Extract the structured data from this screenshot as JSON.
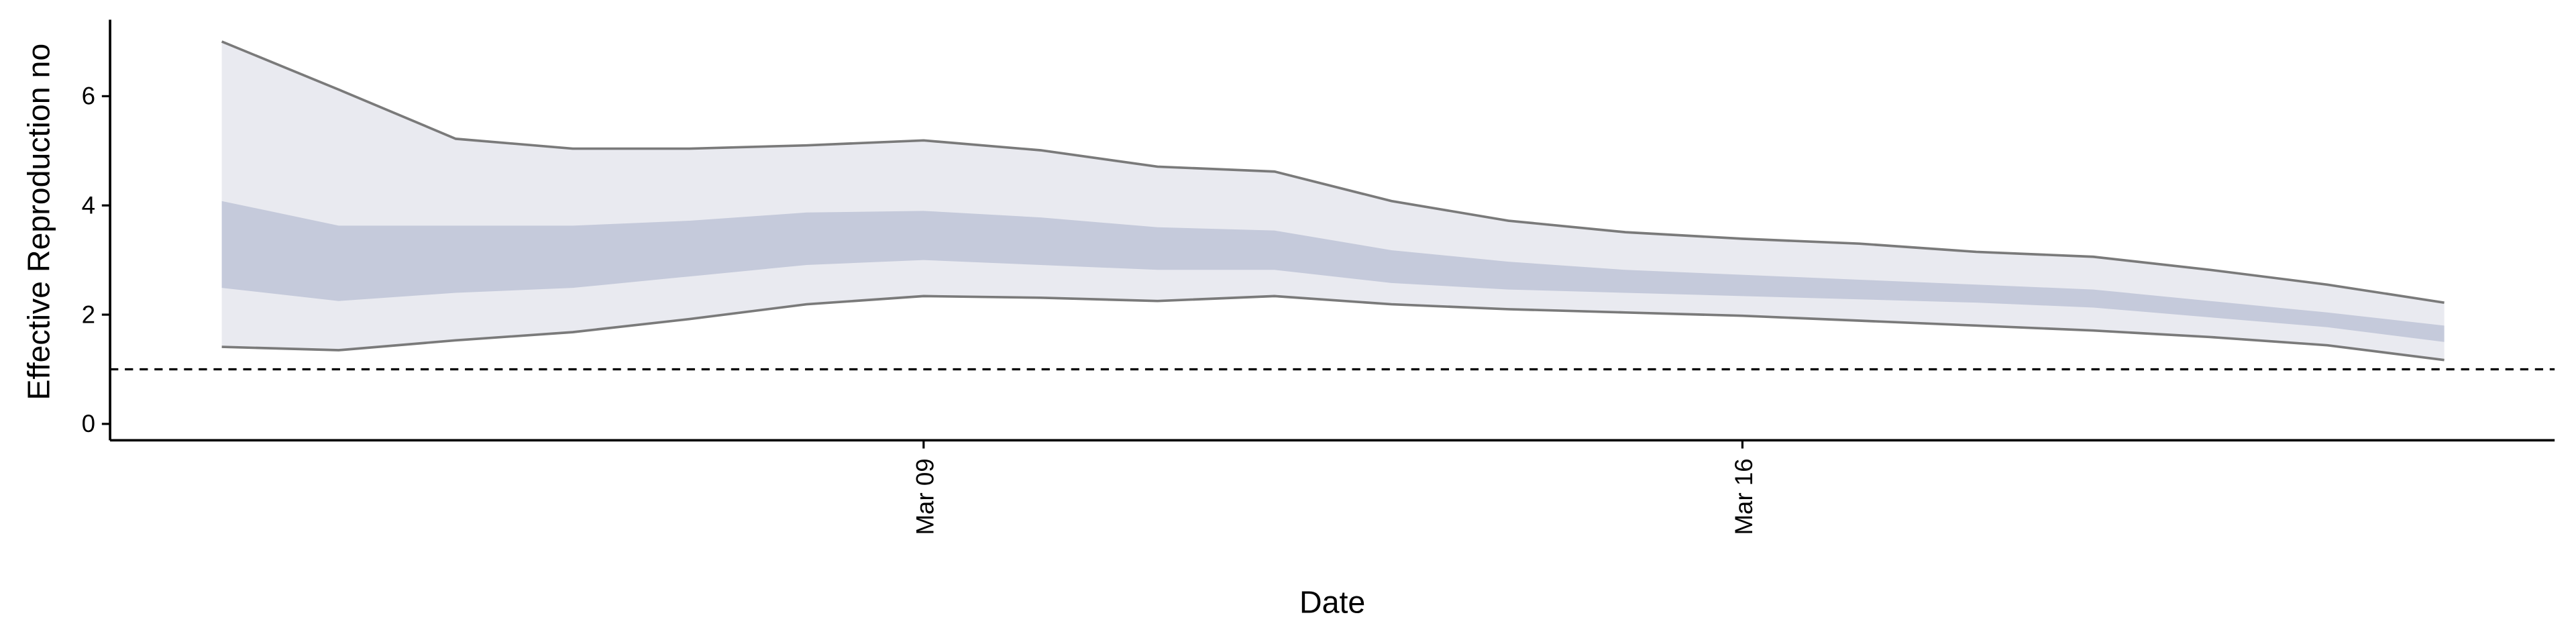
{
  "chart_data": {
    "type": "ribbon",
    "x_label": "Date",
    "y_label": "Effective Reproduction no",
    "x": [
      "Mar 03",
      "Mar 04",
      "Mar 05",
      "Mar 06",
      "Mar 07",
      "Mar 08",
      "Mar 09",
      "Mar 10",
      "Mar 11",
      "Mar 12",
      "Mar 13",
      "Mar 14",
      "Mar 15",
      "Mar 16",
      "Mar 17",
      "Mar 18",
      "Mar 19",
      "Mar 20",
      "Mar 21",
      "Mar 22"
    ],
    "xticks": [
      "Mar 09",
      "Mar 16"
    ],
    "ylim": [
      -0.3,
      7.4
    ],
    "yticks": [
      0,
      2,
      4,
      6
    ],
    "reference_line": 1,
    "outline_color": "#7a7a7a",
    "bands": [
      {
        "color": "#e9eaf0",
        "upper": [
          7.0,
          6.12,
          5.22,
          5.04,
          5.04,
          5.1,
          5.19,
          5.01,
          4.71,
          4.62,
          4.08,
          3.72,
          3.51,
          3.39,
          3.3,
          3.15,
          3.06,
          2.82,
          2.55,
          2.22
        ],
        "lower": [
          1.41,
          1.35,
          1.53,
          1.68,
          1.92,
          2.19,
          2.34,
          2.31,
          2.25,
          2.34,
          2.19,
          2.1,
          2.04,
          1.98,
          1.89,
          1.8,
          1.71,
          1.59,
          1.44,
          1.17
        ]
      },
      {
        "color": "#c5cadb",
        "upper": [
          4.08,
          3.63,
          3.63,
          3.63,
          3.72,
          3.87,
          3.9,
          3.78,
          3.6,
          3.54,
          3.18,
          2.97,
          2.82,
          2.73,
          2.64,
          2.55,
          2.46,
          2.25,
          2.04,
          1.8
        ],
        "lower": [
          2.49,
          2.25,
          2.4,
          2.49,
          2.7,
          2.91,
          3.0,
          2.91,
          2.82,
          2.82,
          2.58,
          2.46,
          2.4,
          2.34,
          2.28,
          2.22,
          2.13,
          1.95,
          1.77,
          1.5
        ]
      }
    ]
  }
}
